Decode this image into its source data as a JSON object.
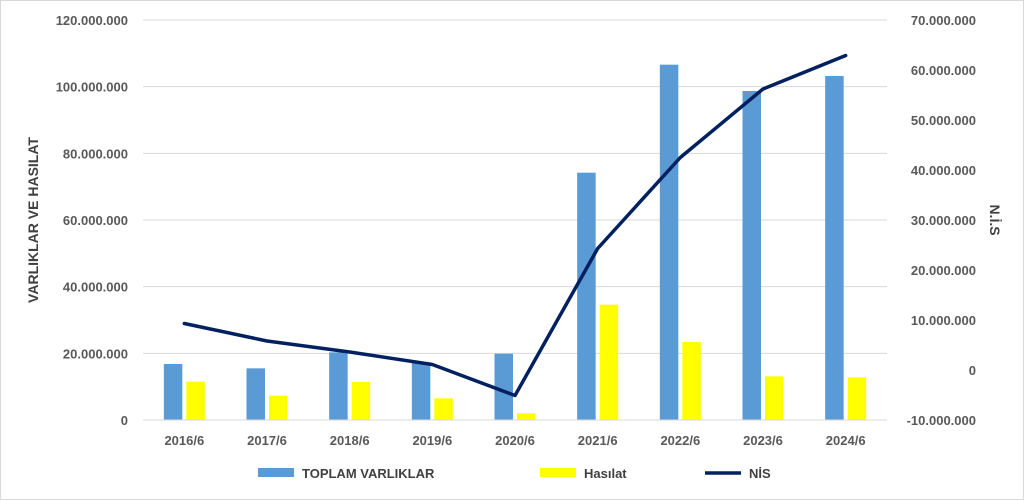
{
  "chart_data": {
    "type": "bar",
    "categories": [
      "2016/6",
      "2017/6",
      "2018/6",
      "2019/6",
      "2020/6",
      "2021/6",
      "2022/6",
      "2023/6",
      "2024/6"
    ],
    "series": [
      {
        "name": "TOPLAM VARLIKLAR",
        "type": "bar",
        "axis": "left",
        "color": "#5B9BD5",
        "values": [
          16800000,
          15500000,
          20300000,
          17200000,
          19900000,
          74200000,
          106600000,
          98700000,
          103200000
        ]
      },
      {
        "name": "Hasılat",
        "type": "bar",
        "axis": "left",
        "color": "#FFFF00",
        "values": [
          11500000,
          7300000,
          11400000,
          6500000,
          2000000,
          34600000,
          23400000,
          13100000,
          12800000
        ]
      },
      {
        "name": "NİS",
        "type": "line",
        "axis": "right",
        "color": "#002060",
        "values": [
          9300000,
          5800000,
          3600000,
          1100000,
          -5100000,
          24300000,
          42500000,
          56200000,
          62900000
        ]
      }
    ],
    "ylabel": "VARLIKLAR VE HASILAT",
    "y2label": "N.İ.S",
    "ylim": [
      0,
      120000000
    ],
    "y2lim": [
      -10000000,
      70000000
    ],
    "yticks": [
      "0",
      "20.000.000",
      "40.000.000",
      "60.000.000",
      "80.000.000",
      "100.000.000",
      "120.000.000"
    ],
    "y2ticks": [
      "-10.000.000",
      "0",
      "10.000.000",
      "20.000.000",
      "30.000.000",
      "40.000.000",
      "50.000.000",
      "60.000.000",
      "70.000.000"
    ],
    "grid": true,
    "legend_position": "bottom"
  }
}
